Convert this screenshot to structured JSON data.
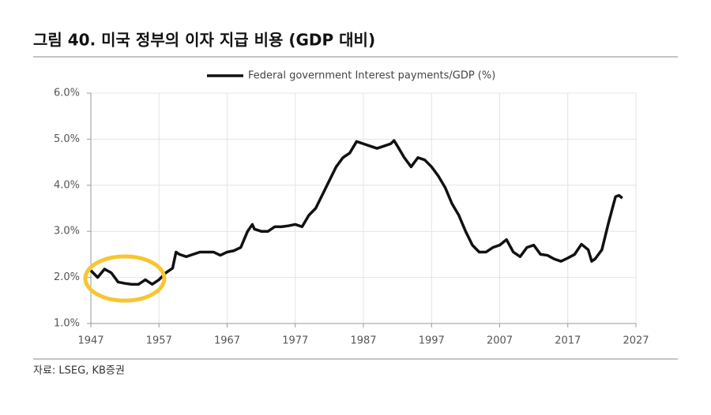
{
  "chart_data": {
    "type": "line",
    "title": "그림 40. 미국 정부의 이자 지급 비용 (GDP 대비)",
    "source": "자료: LSEG, KB증권",
    "x": [
      1947,
      1948,
      1949,
      1950,
      1951,
      1952,
      1953,
      1954,
      1955,
      1956,
      1957,
      1958,
      1959,
      1959.5,
      1960,
      1961,
      1962,
      1963,
      1964,
      1965,
      1966,
      1967,
      1968,
      1969,
      1970,
      1970.7,
      1971,
      1972,
      1973,
      1974,
      1975,
      1976,
      1977,
      1978,
      1979,
      1980,
      1981,
      1982,
      1983,
      1984,
      1985,
      1986,
      1987,
      1988,
      1989,
      1990,
      1991,
      1991.5,
      1992,
      1993,
      1994,
      1995,
      1996,
      1997,
      1998,
      1999,
      2000,
      2001,
      2002,
      2003,
      2004,
      2005,
      2006,
      2007,
      2008,
      2009,
      2010,
      2011,
      2012,
      2013,
      2014,
      2015,
      2016,
      2017,
      2018,
      2019,
      2020,
      2020.5,
      2021,
      2022,
      2023,
      2024,
      2024.5,
      2025
    ],
    "series": [
      {
        "name": "Federal government Interest payments/GDP (%)",
        "color": "#111111",
        "values": [
          2.15,
          2.0,
          2.18,
          2.1,
          1.9,
          1.87,
          1.85,
          1.85,
          1.95,
          1.85,
          1.95,
          2.1,
          2.2,
          2.55,
          2.5,
          2.45,
          2.5,
          2.55,
          2.55,
          2.55,
          2.48,
          2.55,
          2.58,
          2.65,
          3.0,
          3.15,
          3.05,
          3.0,
          3.0,
          3.1,
          3.1,
          3.12,
          3.15,
          3.1,
          3.35,
          3.5,
          3.8,
          4.1,
          4.4,
          4.6,
          4.7,
          4.95,
          4.9,
          4.85,
          4.8,
          4.85,
          4.9,
          4.97,
          4.85,
          4.6,
          4.4,
          4.6,
          4.55,
          4.4,
          4.2,
          3.95,
          3.6,
          3.35,
          3.0,
          2.7,
          2.55,
          2.55,
          2.65,
          2.7,
          2.82,
          2.55,
          2.45,
          2.65,
          2.7,
          2.5,
          2.48,
          2.4,
          2.35,
          2.42,
          2.5,
          2.72,
          2.6,
          2.35,
          2.4,
          2.6,
          3.2,
          3.75,
          3.78,
          3.72
        ]
      }
    ],
    "xlim": [
      1947,
      2027
    ],
    "xticks": [
      1947,
      1957,
      1967,
      1977,
      1987,
      1997,
      2007,
      2017,
      2027
    ],
    "ylim": [
      1,
      6
    ],
    "yticks": [
      {
        "value": 1,
        "label": "1.0%"
      },
      {
        "value": 2,
        "label": "2.0%"
      },
      {
        "value": 3,
        "label": "3.0%"
      },
      {
        "value": 4,
        "label": "4.0%"
      },
      {
        "value": 5,
        "label": "5.0%"
      },
      {
        "value": 6,
        "label": "6.0%"
      }
    ],
    "grid": true,
    "legend": "top"
  }
}
